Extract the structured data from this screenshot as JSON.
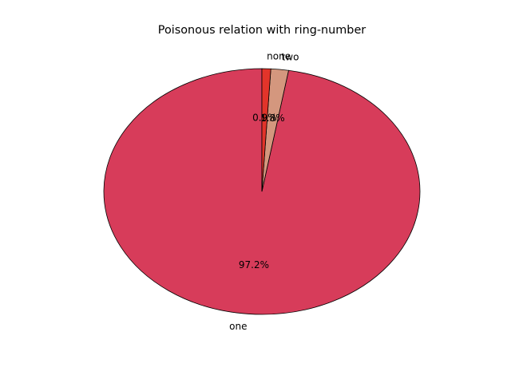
{
  "chart_data": {
    "type": "pie",
    "title": "Poisonous relation with ring-number",
    "slices": [
      {
        "label": "one",
        "value": 97.2,
        "pct_label": "97.2%",
        "color": "#d73c5a"
      },
      {
        "label": "two",
        "value": 1.8,
        "pct_label": "1.8%",
        "color": "#d4977e"
      },
      {
        "label": "none",
        "value": 0.9,
        "pct_label": "0.9%",
        "color": "#e2342a"
      }
    ],
    "start_angle_deg": 90,
    "direction": "counterclockwise"
  }
}
